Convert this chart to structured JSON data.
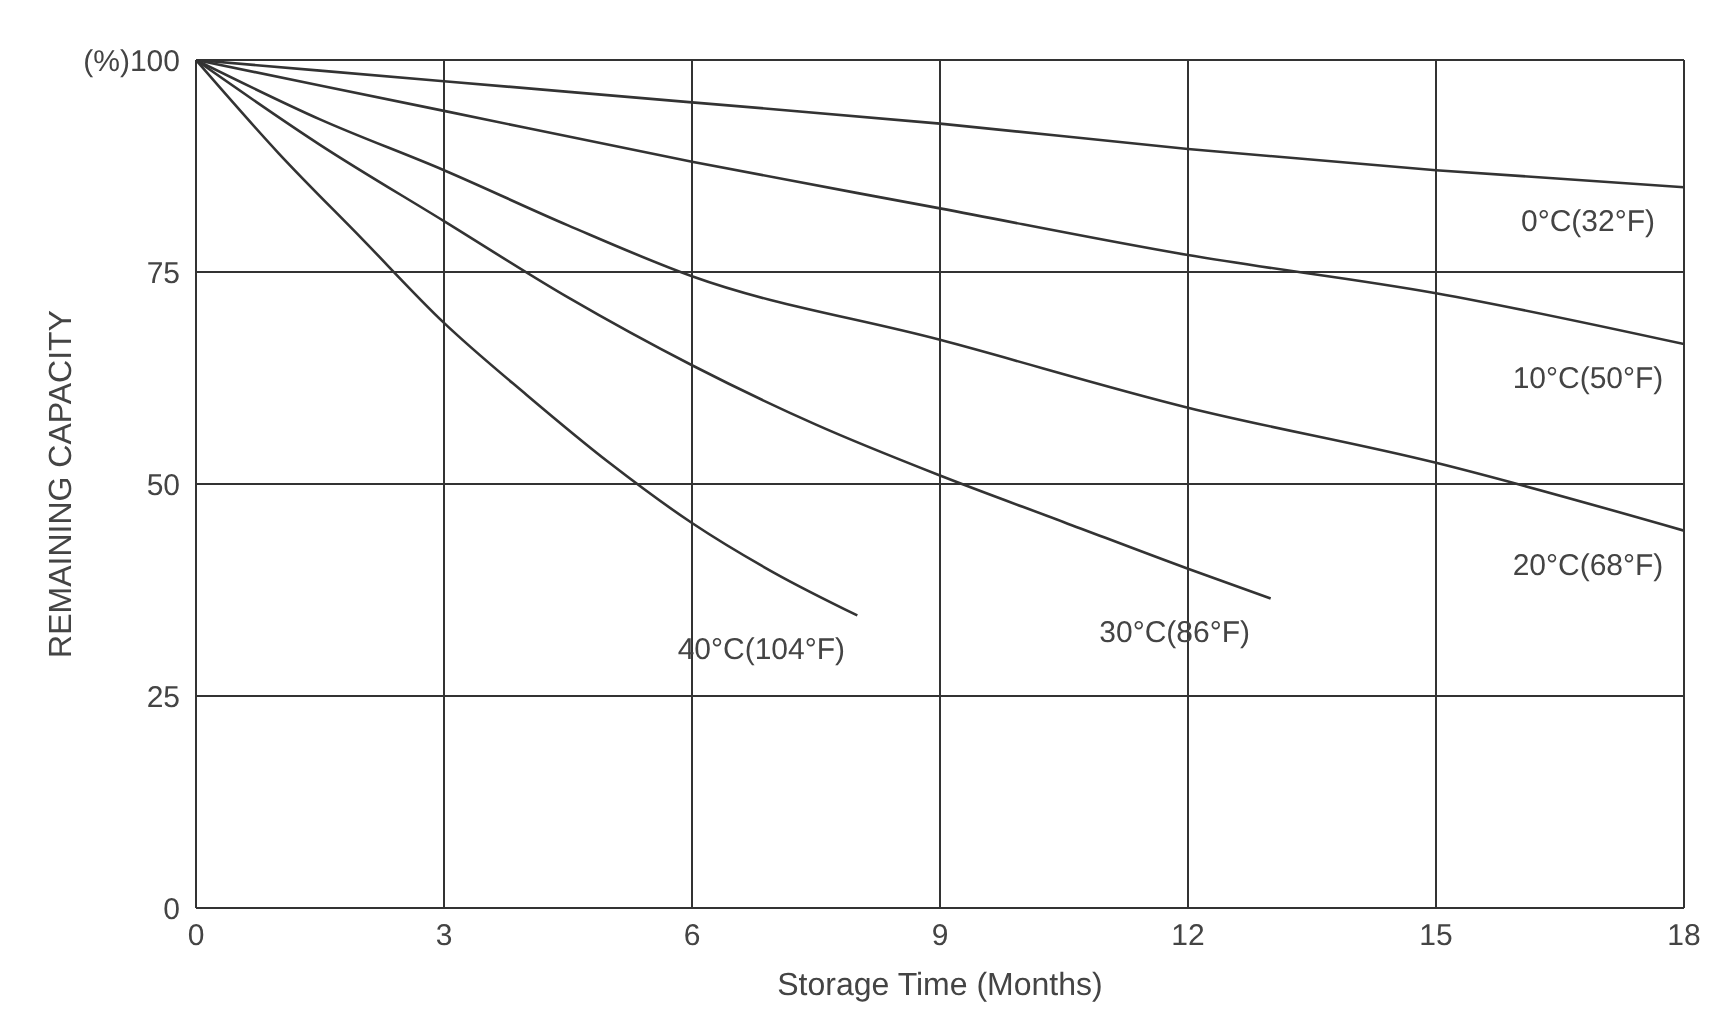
{
  "chart_data": {
    "type": "line",
    "xlabel": "Storage Time (Months)",
    "ylabel": "REMAINING CAPACITY",
    "xlim": [
      0,
      18
    ],
    "xticks": [
      0,
      3,
      6,
      9,
      12,
      15,
      18
    ],
    "ylim": [
      0,
      100
    ],
    "yticks": [
      0,
      25,
      50,
      75,
      {
        "value": 100,
        "label": "(%)100"
      }
    ],
    "grid": true,
    "marker": "none",
    "line_style": "solid",
    "series": [
      {
        "name": "0°C(32°F)",
        "color": "#333333",
        "x": [
          0,
          3,
          6,
          9,
          12,
          15,
          18
        ],
        "values": [
          100,
          97.5,
          95,
          92.5,
          89.5,
          87,
          85
        ]
      },
      {
        "name": "10°C(50°F)",
        "color": "#333333",
        "x": [
          0,
          3,
          6,
          9,
          12,
          15,
          18
        ],
        "values": [
          100,
          94,
          88,
          82.5,
          77,
          72.5,
          66.5
        ]
      },
      {
        "name": "20°C(68°F)",
        "color": "#333333",
        "x": [
          0,
          1.5,
          3,
          4.5,
          6,
          9,
          12,
          15,
          18
        ],
        "values": [
          100,
          93,
          87,
          80.5,
          74.5,
          67,
          59,
          52.5,
          44.5
        ]
      },
      {
        "name": "30°C(86°F)",
        "color": "#333333",
        "x": [
          0,
          1.5,
          3,
          4.5,
          6,
          7.5,
          9,
          10.5,
          12,
          13
        ],
        "values": [
          100,
          90,
          81,
          72,
          64,
          57,
          51,
          45.5,
          40,
          36.5
        ]
      },
      {
        "name": "40°C(104°F)",
        "color": "#333333",
        "x": [
          0,
          1,
          2,
          3,
          4,
          5,
          6,
          7,
          8
        ],
        "values": [
          100,
          89,
          79,
          69,
          60.5,
          52.5,
          45.4,
          39.5,
          34.5
        ]
      }
    ]
  }
}
